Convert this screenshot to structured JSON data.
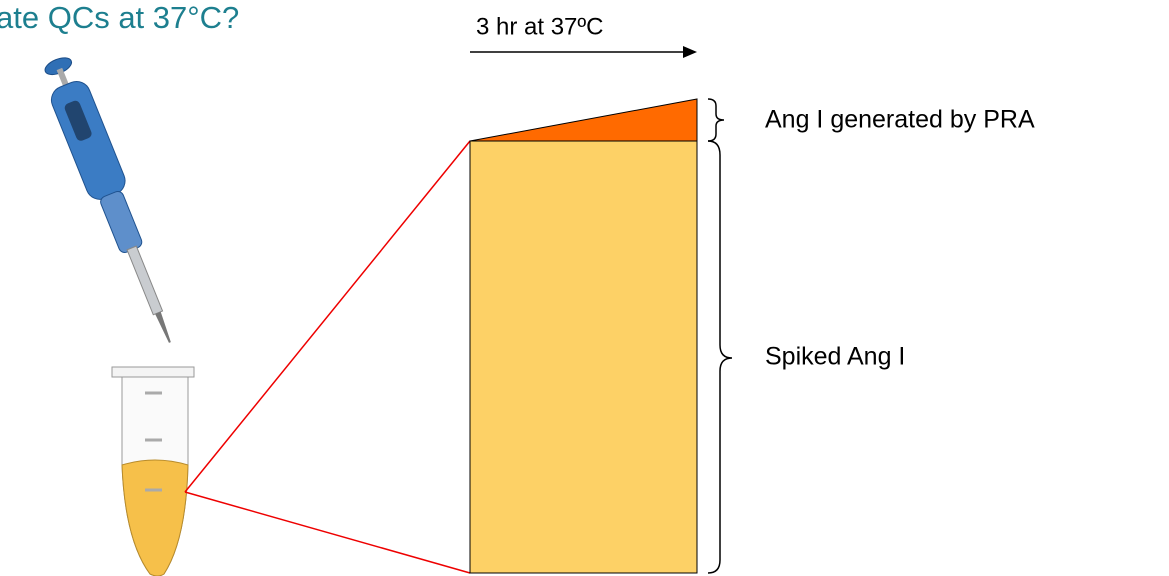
{
  "header": {
    "title": "ate QCs at 37°C?"
  },
  "diagram": {
    "arrow_label": "3 hr at 37ºC",
    "labels": [
      "Ang I generated by PRA",
      "Spiked Ang I"
    ]
  }
}
